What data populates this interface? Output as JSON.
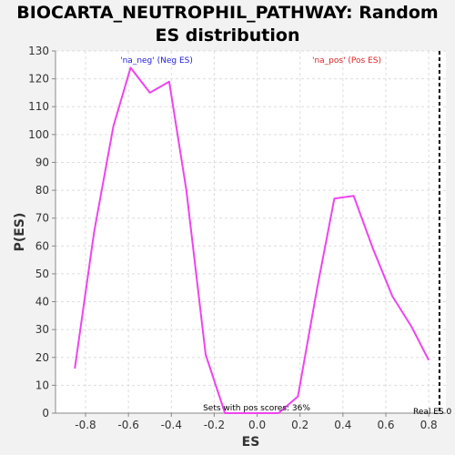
{
  "chart_data": {
    "type": "line",
    "title_lines": [
      "BIOCARTA_NEUTROPHIL_PATHWAY: Random",
      "ES distribution"
    ],
    "xlabel": "ES",
    "ylabel": "P(ES)",
    "xlim": [
      -0.94,
      0.88
    ],
    "ylim": [
      0,
      130
    ],
    "xticks": [
      -0.8,
      -0.6,
      -0.4,
      -0.2,
      0.0,
      0.2,
      0.4,
      0.6,
      0.8
    ],
    "xtick_labels": [
      "-0.8",
      "-0.6",
      "-0.4",
      "-0.2",
      "0.0",
      "0.2",
      "0.4",
      "0.6",
      "0.8"
    ],
    "yticks": [
      0,
      10,
      20,
      30,
      40,
      50,
      60,
      70,
      80,
      90,
      100,
      110,
      120,
      130
    ],
    "grid": true,
    "series": [
      {
        "color": "#ee44ee",
        "x": [
          -0.85,
          -0.76,
          -0.67,
          -0.59,
          -0.5,
          -0.41,
          -0.33,
          -0.24,
          -0.15,
          -0.07,
          0.02,
          0.1,
          0.19,
          0.28,
          0.36,
          0.45,
          0.54,
          0.63,
          0.72,
          0.8
        ],
        "y": [
          16,
          65,
          103,
          124,
          115,
          119,
          80,
          21,
          0,
          0,
          0,
          0,
          6,
          45,
          77,
          78,
          59,
          42,
          31,
          19
        ]
      }
    ],
    "annotations": {
      "neg": {
        "text": "'na_neg' (Neg ES)",
        "color": "#2222dd"
      },
      "pos": {
        "text": "'na_pos' (Pos ES)",
        "color": "#dd2222"
      },
      "pos_scores": {
        "text": "Sets with pos scores: 36%",
        "color": "#000000"
      },
      "real_es": {
        "text": "Real ES 0",
        "x": 0.85,
        "color": "#000000"
      }
    }
  }
}
